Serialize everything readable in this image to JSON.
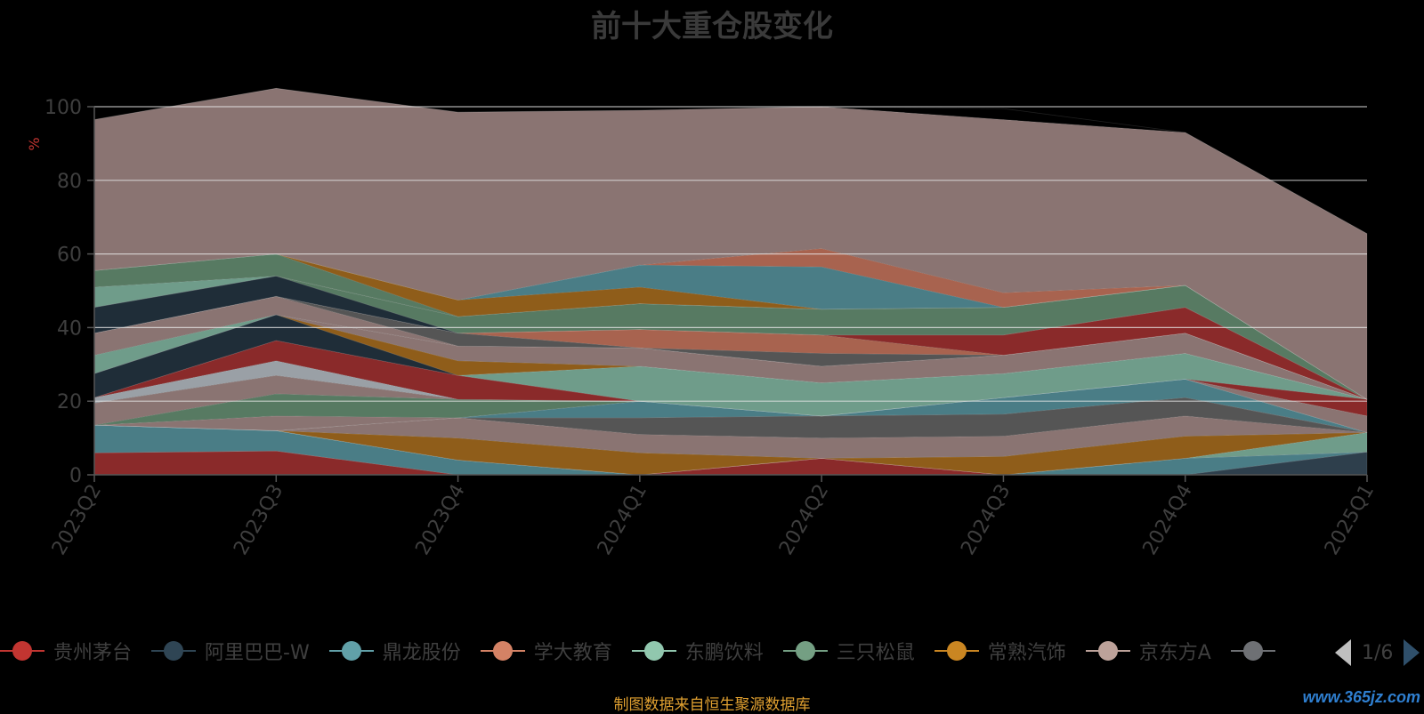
{
  "chart_data": {
    "type": "area",
    "title": "前十大重仓股变化",
    "ylabel": "%",
    "ylim": [
      0,
      100
    ],
    "y_ticks": [
      "0",
      "20",
      "40",
      "60",
      "80",
      "100"
    ],
    "categories": [
      "2023Q2",
      "2023Q3",
      "2023Q4",
      "2024Q1",
      "2024Q2",
      "2024Q3",
      "2024Q4",
      "2025Q1"
    ],
    "series": [
      {
        "color": "#8a2a2a",
        "values": [
          6,
          6.5,
          0,
          0,
          4.5,
          0,
          0,
          0
        ]
      },
      {
        "color": "#2e3f4c",
        "values": [
          0,
          0,
          0,
          0,
          0,
          0,
          0,
          6.2
        ]
      },
      {
        "color": "#4a7d86",
        "values": [
          7.5,
          5.5,
          4,
          0,
          0,
          0,
          4.5,
          0
        ]
      },
      {
        "color": "#a8634f",
        "values": [
          0,
          0,
          0,
          0,
          0,
          0,
          0,
          0
        ]
      },
      {
        "color": "#6f9c8a",
        "values": [
          0,
          0,
          0,
          0,
          0,
          0,
          0,
          5.3
        ]
      },
      {
        "color": "#577a62",
        "values": [
          0,
          0,
          0,
          0,
          0,
          0,
          0,
          0
        ]
      },
      {
        "color": "#8f5d1a",
        "values": [
          0,
          0,
          6,
          6,
          0,
          5,
          6,
          0
        ]
      },
      {
        "color": "#8a7472",
        "values": [
          0,
          0,
          5.5,
          5,
          5.5,
          5.5,
          5.5,
          0
        ]
      },
      {
        "color": "#555555",
        "values": [
          0,
          0,
          0,
          4.5,
          6,
          6,
          5,
          0
        ]
      },
      {
        "color": "#4a7d86",
        "values": [
          0,
          0,
          0,
          4.5,
          0,
          4.5,
          5,
          0
        ]
      },
      {
        "color": "#8a7472",
        "values": [
          0,
          4,
          0,
          0,
          0,
          0,
          0,
          0
        ]
      },
      {
        "color": "#577a62",
        "values": [
          0,
          6,
          5,
          0,
          0,
          0,
          0,
          0
        ]
      },
      {
        "color": "#8a7472",
        "values": [
          6,
          5,
          0,
          0,
          0,
          0,
          0,
          4.5
        ]
      },
      {
        "color": "#9aa0a6",
        "values": [
          1.5,
          4,
          0,
          0,
          0,
          0,
          0,
          0
        ]
      },
      {
        "color": "#8a2a2a",
        "values": [
          0,
          5.5,
          6.5,
          0,
          0,
          0,
          0,
          4.5
        ]
      },
      {
        "color": "#6f9c8a",
        "values": [
          0,
          0,
          0,
          9.5,
          9,
          6.5,
          7,
          0
        ]
      },
      {
        "color": "#1f2d38",
        "values": [
          6.5,
          7,
          0,
          0,
          0,
          0,
          0,
          0
        ]
      },
      {
        "color": "#8f5d1a",
        "values": [
          0,
          0,
          4,
          0,
          0,
          0,
          0,
          0
        ]
      },
      {
        "color": "#8a7472",
        "values": [
          0,
          0,
          4,
          5,
          4.5,
          5,
          5.5,
          0
        ]
      },
      {
        "color": "#6f9c8a",
        "values": [
          5,
          0,
          0,
          0,
          0,
          0,
          0,
          0
        ]
      },
      {
        "color": "#8a7472",
        "values": [
          6,
          5,
          0,
          0,
          0,
          0,
          0,
          0
        ]
      },
      {
        "color": "#555555",
        "values": [
          0,
          0,
          3.5,
          0,
          3.5,
          0,
          0,
          0
        ]
      },
      {
        "color": "#a8634f",
        "values": [
          0,
          0,
          0,
          5,
          5,
          0,
          0,
          0
        ]
      },
      {
        "color": "#8a2a2a",
        "values": [
          0,
          0,
          0,
          0,
          0,
          5.5,
          7,
          0
        ]
      },
      {
        "color": "#1f2d38",
        "values": [
          7,
          5.5,
          0,
          0,
          0,
          0,
          0,
          0
        ]
      },
      {
        "color": "#577a62",
        "values": [
          0,
          0,
          4.5,
          7,
          7,
          7.5,
          6,
          0
        ]
      },
      {
        "color": "#6f9c8a",
        "values": [
          5.5,
          0,
          0,
          0,
          0,
          0,
          0,
          0
        ]
      },
      {
        "color": "#577a62",
        "values": [
          4.5,
          6,
          0,
          0,
          0,
          0,
          0,
          0
        ]
      },
      {
        "color": "#8f5d1a",
        "values": [
          0,
          0,
          4.5,
          4.5,
          0,
          0,
          0,
          0
        ]
      },
      {
        "color": "#4a7d86",
        "values": [
          0,
          0,
          0,
          6,
          11.5,
          0,
          0,
          0
        ]
      },
      {
        "color": "#a8634f",
        "values": [
          0,
          0,
          0,
          0,
          5,
          4,
          0,
          0
        ]
      },
      {
        "color": "#8a7472",
        "values": [
          41,
          45,
          51,
          42,
          38.5,
          47,
          41.5,
          45
        ]
      },
      {
        "color": "#000000",
        "values": [
          0,
          0,
          0,
          0,
          0,
          3,
          0,
          0
        ]
      }
    ]
  },
  "legend": {
    "items": [
      {
        "label": "贵州茅台",
        "color": "#c23531"
      },
      {
        "label": "阿里巴巴-W",
        "color": "#2f4554"
      },
      {
        "label": "鼎龙股份",
        "color": "#61a0a8"
      },
      {
        "label": "学大教育",
        "color": "#d48265"
      },
      {
        "label": "东鹏饮料",
        "color": "#91c7ae"
      },
      {
        "label": "三只松鼠",
        "color": "#749f83"
      },
      {
        "label": "常熟汽饰",
        "color": "#ca8622"
      },
      {
        "label": "京东方A",
        "color": "#bda29a"
      },
      {
        "label": "",
        "color": "#6e7074"
      }
    ],
    "page": "1/6"
  },
  "source": "制图数据来自恒生聚源数据库",
  "watermark": "www.365jz.com"
}
